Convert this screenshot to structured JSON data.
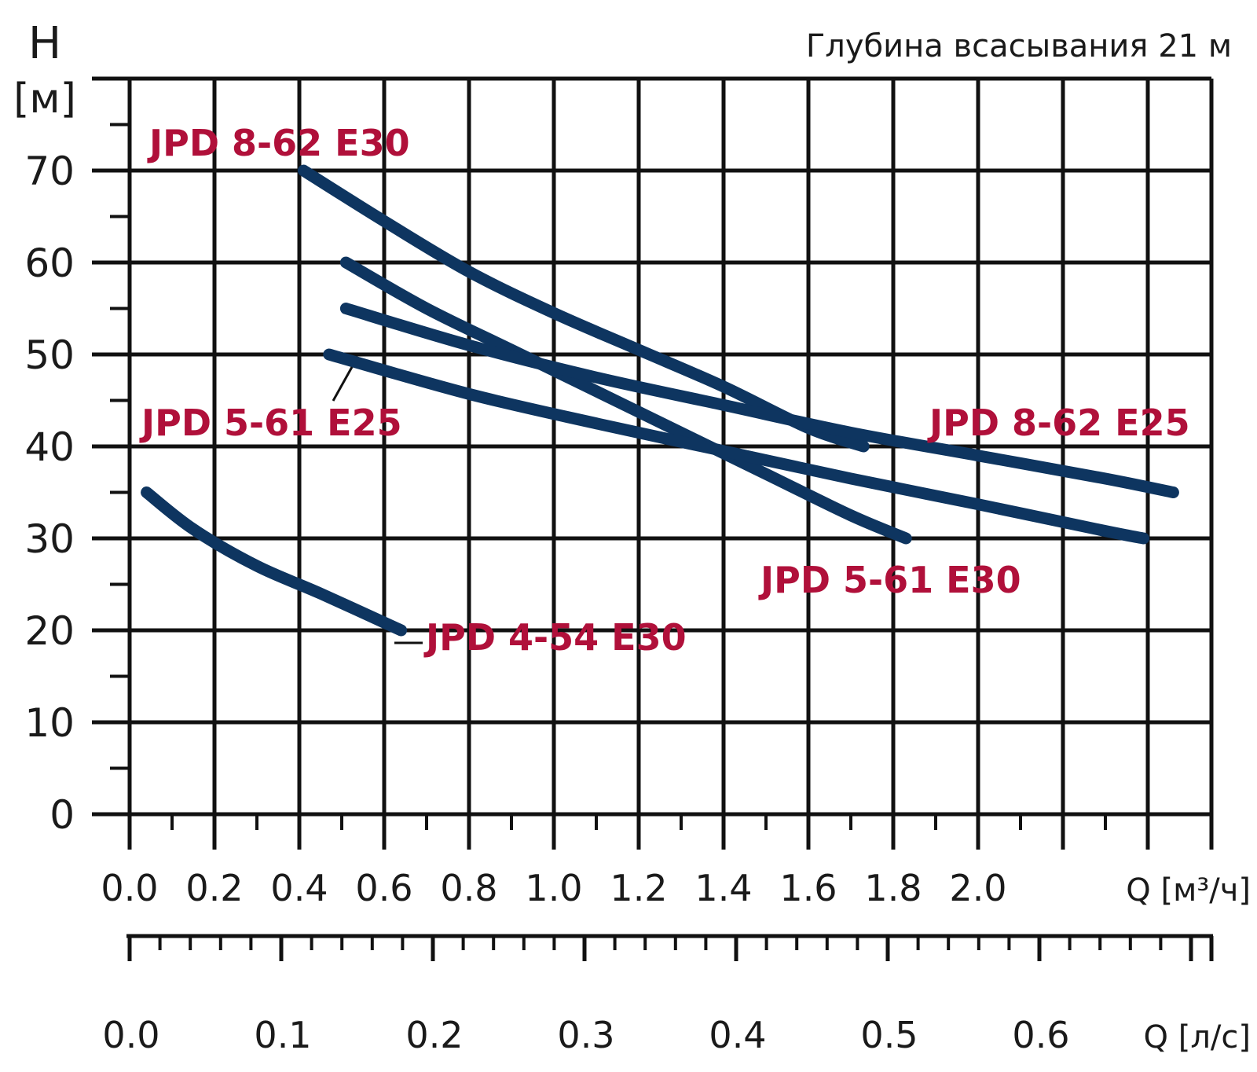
{
  "chart_data": {
    "type": "line",
    "title": "",
    "subtitle": "Глубина всасывания 21 м",
    "y_axis": {
      "label_top": "H",
      "label_unit": "[м]",
      "ticks": [
        "0",
        "10",
        "20",
        "30",
        "40",
        "50",
        "60",
        "70"
      ],
      "ylim": [
        0,
        80
      ]
    },
    "x_axis_primary": {
      "label": "Q [м³/ч]",
      "ticks": [
        "0.0",
        "0.2",
        "0.4",
        "0.6",
        "0.8",
        "1.0",
        "1.2",
        "1.4",
        "1.6",
        "1.8",
        "2.0"
      ],
      "xlim": [
        0,
        2.6
      ]
    },
    "x_axis_secondary": {
      "label": "Q [л/с]",
      "ticks": [
        "0.0",
        "0.1",
        "0.2",
        "0.3",
        "0.4",
        "0.5",
        "0.6"
      ],
      "xlim": [
        0,
        0.72
      ]
    },
    "grid": true,
    "series": [
      {
        "name": "JPD 8-62 E30",
        "color": "#0e3560",
        "x": [
          0.41,
          0.6,
          0.8,
          1.0,
          1.2,
          1.4,
          1.6,
          1.73
        ],
        "y": [
          70,
          64.5,
          59,
          54.5,
          50.5,
          46.5,
          42,
          40
        ]
      },
      {
        "name": "JPD 5-61 E30",
        "color": "#0e3560",
        "x": [
          0.51,
          0.7,
          0.9,
          1.1,
          1.3,
          1.5,
          1.7,
          1.83
        ],
        "y": [
          60,
          55,
          50.5,
          46,
          41.5,
          37,
          32.5,
          30
        ]
      },
      {
        "name": "JPD 8-62 E25",
        "color": "#0e3560",
        "x": [
          0.51,
          0.8,
          1.1,
          1.4,
          1.7,
          2.0,
          2.3,
          2.46
        ],
        "y": [
          55,
          51,
          47.5,
          44.5,
          41.5,
          39,
          36.5,
          35
        ]
      },
      {
        "name": "JPD 5-61 E25",
        "color": "#0e3560",
        "x": [
          0.47,
          0.8,
          1.1,
          1.4,
          1.7,
          2.0,
          2.3,
          2.39
        ],
        "y": [
          50,
          45.7,
          42.5,
          39.5,
          36.5,
          33.7,
          30.8,
          30
        ]
      },
      {
        "name": "JPD 4-54 E30",
        "color": "#0e3560",
        "x": [
          0.04,
          0.15,
          0.3,
          0.45,
          0.64
        ],
        "y": [
          35,
          31,
          27,
          24,
          20
        ]
      }
    ],
    "labels": {
      "jpd_8_62_e30": "JPD 8-62 E30",
      "jpd_5_61_e25": "JPD 5-61 E25",
      "jpd_8_62_e25": "JPD 8-62 E25",
      "jpd_5_61_e30": "JPD 5-61 E30",
      "jpd_4_54_e30": "JPD 4-54 E30"
    }
  }
}
